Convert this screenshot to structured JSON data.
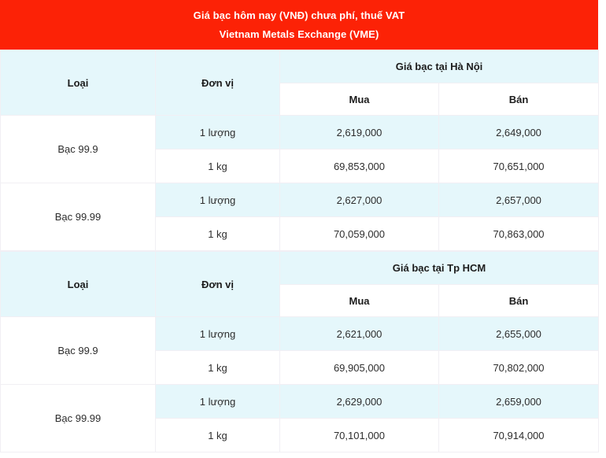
{
  "banner": {
    "line1": "Giá bạc hôm nay (VNĐ) chưa phí, thuế VAT",
    "line2": "Vietnam Metals Exchange (VME)"
  },
  "colors": {
    "header-red": "#fc2206",
    "row-cyan": "#e5f7fb",
    "border-col": "#f1eff4",
    "text-dark": "#1c1c1c",
    "text-value": "#2d2d2d"
  },
  "table": {
    "type_label": "Loại",
    "unit_label": "Đơn vị",
    "buy_label": "Mua",
    "sell_label": "Bán",
    "sections": [
      {
        "group_label": "Giá bạc tại Hà Nội",
        "rows": [
          {
            "type": "Bạc 99.9",
            "unit": "1 lượng",
            "buy": "2,619,000",
            "sell": "2,649,000"
          },
          {
            "unit": "1 kg",
            "buy": "69,853,000",
            "sell": "70,651,000"
          },
          {
            "type": "Bạc 99.99",
            "unit": "1 lượng",
            "buy": "2,627,000",
            "sell": "2,657,000"
          },
          {
            "unit": "1 kg",
            "buy": "70,059,000",
            "sell": "70,863,000"
          }
        ]
      },
      {
        "group_label": "Giá bạc tại Tp HCM",
        "rows": [
          {
            "type": "Bạc 99.9",
            "unit": "1 lượng",
            "buy": "2,621,000",
            "sell": "2,655,000"
          },
          {
            "unit": "1 kg",
            "buy": "69,905,000",
            "sell": "70,802,000"
          },
          {
            "type": "Bạc 99.99",
            "unit": "1 lượng",
            "buy": "2,629,000",
            "sell": "2,659,000"
          },
          {
            "unit": "1 kg",
            "buy": "70,101,000",
            "sell": "70,914,000"
          }
        ]
      }
    ]
  }
}
